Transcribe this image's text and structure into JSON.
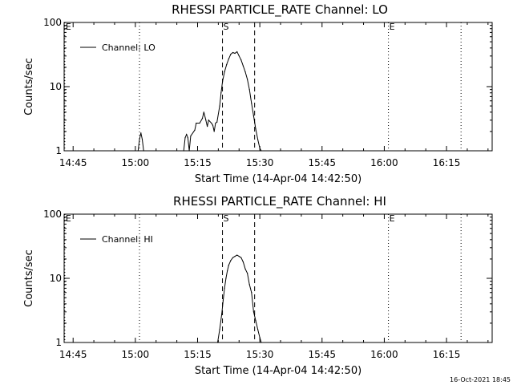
{
  "chart_data": [
    {
      "type": "line",
      "title": "RHESSI PARTICLE_RATE Channel: LO",
      "xlabel": "Start Time (14-Apr-04 14:42:50)",
      "ylabel": "Counts/sec",
      "y_scale": "log",
      "ylim": [
        1,
        100
      ],
      "xlim": [
        "14:42:50",
        "16:26:00"
      ],
      "x_ticks": [
        "14:45",
        "15:00",
        "15:15",
        "15:30",
        "15:45",
        "16:00",
        "16:15"
      ],
      "y_ticks": [
        "1",
        "10",
        "100"
      ],
      "legend_placement": "top-left",
      "series": [
        {
          "name": "Channel: LO",
          "x": [
            "15:00:40",
            "15:01:00",
            "15:01:20",
            "15:01:40",
            "15:02:00",
            "15:11:40",
            "15:12:00",
            "15:12:20",
            "15:12:40",
            "15:13:00",
            "15:13:20",
            "15:14:20",
            "15:14:40",
            "15:15:30",
            "15:16:10",
            "15:16:30",
            "15:17:00",
            "15:17:20",
            "15:17:40",
            "15:18:20",
            "15:18:40",
            "15:19:00",
            "15:19:20",
            "15:19:40",
            "15:20:20",
            "15:20:40",
            "15:21:00",
            "15:21:30",
            "15:22:00",
            "15:22:30",
            "15:23:00",
            "15:23:30",
            "15:24:00",
            "15:24:30",
            "15:25:00",
            "15:25:30",
            "15:26:00",
            "15:26:30",
            "15:27:00",
            "15:27:30",
            "15:28:00",
            "15:28:30",
            "15:29:00",
            "15:29:30",
            "15:30:00",
            "15:30:20"
          ],
          "y": [
            1.0,
            1.5,
            1.9,
            1.5,
            1.0,
            1.0,
            1.6,
            1.8,
            1.6,
            1.0,
            1.7,
            2.1,
            2.7,
            2.7,
            3.2,
            4.0,
            3.0,
            2.4,
            3.0,
            2.7,
            2.5,
            2.0,
            2.7,
            2.8,
            5,
            8,
            12,
            17,
            22,
            27,
            32,
            34,
            33,
            35,
            30,
            26,
            21,
            17,
            13,
            9,
            5.5,
            3.5,
            2.2,
            1.5,
            1.1,
            1.0
          ]
        }
      ],
      "markers": [
        {
          "label": "E",
          "x": "14:43:00",
          "style": "dotted"
        },
        {
          "label": "",
          "x": "15:01:00",
          "style": "dotted"
        },
        {
          "label": "S",
          "x": "15:21:00",
          "style": "dashed"
        },
        {
          "label": "",
          "x": "15:28:45",
          "style": "dashed"
        },
        {
          "label": "E",
          "x": "16:01:00",
          "style": "dotted"
        },
        {
          "label": "",
          "x": "16:18:30",
          "style": "dotted"
        }
      ]
    },
    {
      "type": "line",
      "title": "RHESSI PARTICLE_RATE Channel: HI",
      "xlabel": "Start Time (14-Apr-04 14:42:50)",
      "ylabel": "Counts/sec",
      "y_scale": "log",
      "ylim": [
        1,
        100
      ],
      "xlim": [
        "14:42:50",
        "16:26:00"
      ],
      "x_ticks": [
        "14:45",
        "15:00",
        "15:15",
        "15:30",
        "15:45",
        "16:00",
        "16:15"
      ],
      "y_ticks": [
        "1",
        "10",
        "100"
      ],
      "legend_placement": "top-left",
      "series": [
        {
          "name": "Channel: HI",
          "x": [
            "15:19:50",
            "15:20:20",
            "15:20:50",
            "15:21:10",
            "15:21:30",
            "15:21:50",
            "15:22:10",
            "15:22:30",
            "15:23:00",
            "15:23:30",
            "15:24:00",
            "15:24:30",
            "15:25:00",
            "15:25:30",
            "15:26:00",
            "15:26:30",
            "15:27:00",
            "15:27:30",
            "15:28:00",
            "15:28:30",
            "15:29:00",
            "15:29:30",
            "15:30:00",
            "15:30:20"
          ],
          "y": [
            1.0,
            1.6,
            2.8,
            4.5,
            7,
            10,
            13,
            16,
            19,
            21,
            22,
            23,
            22,
            21,
            18,
            14,
            12,
            8,
            6,
            3,
            2.2,
            1.6,
            1.2,
            1.0
          ]
        }
      ],
      "markers": [
        {
          "label": "E",
          "x": "14:43:00",
          "style": "dotted"
        },
        {
          "label": "",
          "x": "15:01:00",
          "style": "dotted"
        },
        {
          "label": "S",
          "x": "15:21:00",
          "style": "dashed"
        },
        {
          "label": "",
          "x": "15:28:45",
          "style": "dashed"
        },
        {
          "label": "E",
          "x": "16:01:00",
          "style": "dotted"
        },
        {
          "label": "",
          "x": "16:18:30",
          "style": "dotted"
        }
      ]
    }
  ],
  "footer": {
    "timestamp": "16-Oct-2021 18:45"
  }
}
